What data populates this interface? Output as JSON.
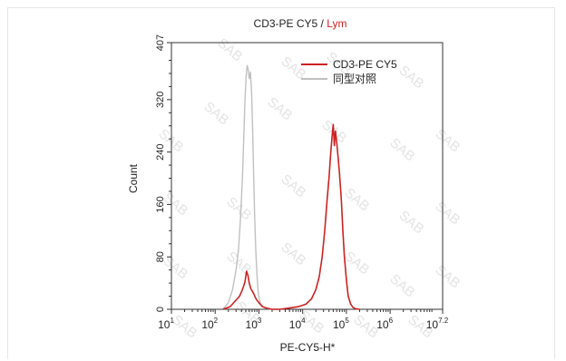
{
  "chart_data": {
    "type": "line",
    "title": {
      "marker": "CD3-PE CY5",
      "separator": " / ",
      "gate": "Lym",
      "gate_color": "#cc2222"
    },
    "xlabel": "PE-CY5-H*",
    "ylabel": "Count",
    "x_scale": "log",
    "xlim": [
      10,
      15848932
    ],
    "ylim": [
      0,
      407
    ],
    "x_ticks": [
      {
        "exp": "1"
      },
      {
        "exp": "2"
      },
      {
        "exp": "3"
      },
      {
        "exp": "4"
      },
      {
        "exp": "5"
      },
      {
        "exp": "6"
      },
      {
        "exp": "7.2"
      }
    ],
    "y_ticks": [
      "0",
      "80",
      "160",
      "240",
      "320",
      "407"
    ],
    "y_tick_values": [
      0,
      80,
      160,
      240,
      320,
      407
    ],
    "legend_position": "top-right",
    "watermark": "SAB",
    "series": [
      {
        "name": "CD3-PE CY5",
        "color": "#cc2222",
        "x": [
          150,
          220,
          300,
          360,
          420,
          480,
          520,
          560,
          600,
          650,
          700,
          760,
          830,
          900,
          1000,
          1200,
          1500,
          2000,
          3000,
          5000,
          8000,
          12000,
          16000,
          20000,
          24000,
          28000,
          32000,
          36000,
          40000,
          44000,
          48000,
          50000,
          53000,
          56000,
          60000,
          65000,
          70000,
          76000,
          83000,
          90000,
          100000,
          110000,
          125000,
          140000,
          160000,
          200000
        ],
        "y": [
          0,
          4,
          14,
          20,
          30,
          42,
          58,
          52,
          40,
          32,
          28,
          24,
          18,
          14,
          10,
          4,
          2,
          0,
          0,
          2,
          4,
          8,
          16,
          30,
          50,
          80,
          120,
          165,
          200,
          240,
          270,
          282,
          250,
          272,
          255,
          230,
          205,
          170,
          120,
          80,
          45,
          20,
          8,
          3,
          1,
          0
        ]
      },
      {
        "name": "同型对照",
        "color": "#c0c0c0",
        "x": [
          150,
          200,
          250,
          300,
          340,
          380,
          420,
          450,
          480,
          510,
          540,
          570,
          600,
          640,
          680,
          720,
          760,
          800,
          850,
          900,
          950,
          1000,
          1100,
          1300,
          1600,
          2000,
          3000
        ],
        "y": [
          0,
          10,
          30,
          60,
          90,
          140,
          200,
          260,
          320,
          355,
          372,
          365,
          352,
          362,
          330,
          270,
          200,
          140,
          90,
          55,
          30,
          18,
          8,
          3,
          1,
          0,
          0
        ]
      }
    ]
  }
}
